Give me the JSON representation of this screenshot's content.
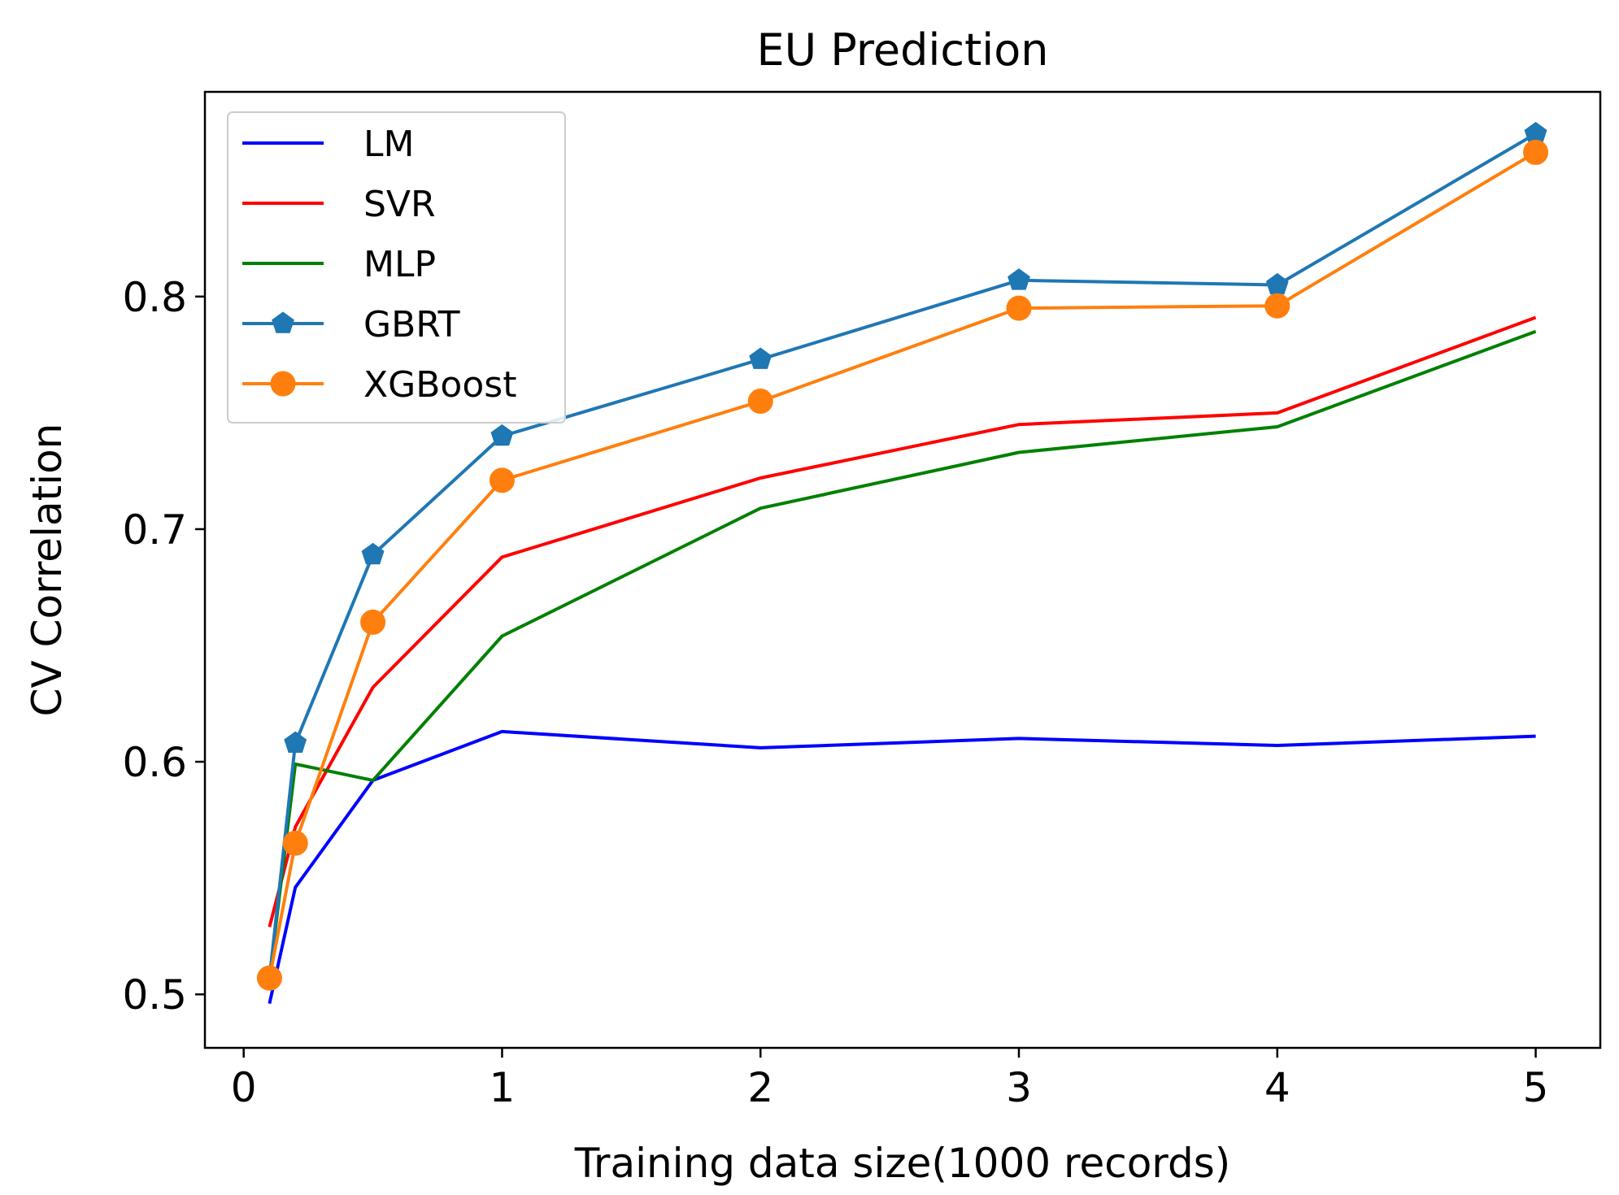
{
  "chart_data": {
    "type": "line",
    "title": "EU Prediction",
    "xlabel": "Training data size(1000 records)",
    "ylabel": "CV Correlation",
    "xlim": [
      -0.15,
      5.25
    ],
    "ylim": [
      0.477,
      0.888
    ],
    "xticks": [
      0,
      1,
      2,
      3,
      4,
      5
    ],
    "xtick_labels": [
      "0",
      "1",
      "2",
      "3",
      "4",
      "5"
    ],
    "yticks": [
      0.5,
      0.6,
      0.7,
      0.8
    ],
    "ytick_labels": [
      "0.5",
      "0.6",
      "0.7",
      "0.8"
    ],
    "grid": false,
    "legend_position": "upper-left",
    "x": [
      0.1,
      0.2,
      0.5,
      1,
      2,
      3,
      4,
      5
    ],
    "series": [
      {
        "name": "LM",
        "color": "#0000ff",
        "marker": "none",
        "values": [
          0.496,
          0.546,
          0.592,
          0.613,
          0.606,
          0.61,
          0.607,
          0.611
        ]
      },
      {
        "name": "SVR",
        "color": "#ff0000",
        "marker": "none",
        "values": [
          0.529,
          0.572,
          0.632,
          0.688,
          0.722,
          0.745,
          0.75,
          0.791
        ]
      },
      {
        "name": "MLP",
        "color": "#008000",
        "marker": "none",
        "values": [
          0.507,
          0.599,
          0.592,
          0.654,
          0.709,
          0.733,
          0.744,
          0.785
        ]
      },
      {
        "name": "GBRT",
        "color": "#1f77b4",
        "marker": "pentagon",
        "values": [
          0.507,
          0.608,
          0.689,
          0.74,
          0.773,
          0.807,
          0.805,
          0.87
        ]
      },
      {
        "name": "XGBoost",
        "color": "#ff7f0e",
        "marker": "circle",
        "values": [
          0.507,
          0.565,
          0.66,
          0.721,
          0.755,
          0.795,
          0.796,
          0.862
        ]
      }
    ]
  }
}
